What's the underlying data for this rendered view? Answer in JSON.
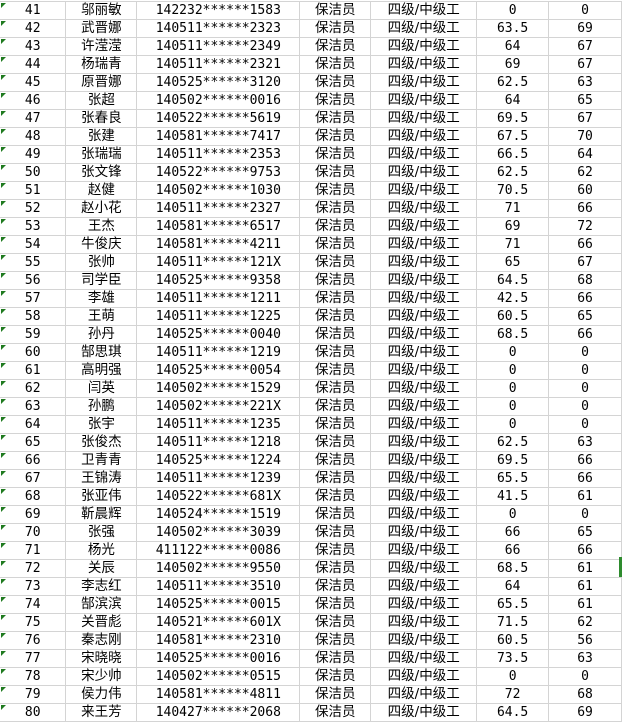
{
  "colors": {
    "grid_line": "#d4d4d4",
    "indicator_green": "#1f7a1f"
  },
  "rows": [
    [
      "41",
      "邬丽敏",
      "142232******1583",
      "保洁员",
      "四级/中级工",
      "0",
      "0"
    ],
    [
      "42",
      "武晋娜",
      "140511******2323",
      "保洁员",
      "四级/中级工",
      "63.5",
      "69"
    ],
    [
      "43",
      "许滢滢",
      "140511******2349",
      "保洁员",
      "四级/中级工",
      "64",
      "67"
    ],
    [
      "44",
      "杨瑞青",
      "140511******2321",
      "保洁员",
      "四级/中级工",
      "69",
      "67"
    ],
    [
      "45",
      "原晋娜",
      "140525******3120",
      "保洁员",
      "四级/中级工",
      "62.5",
      "63"
    ],
    [
      "46",
      "张超",
      "140502******0016",
      "保洁员",
      "四级/中级工",
      "64",
      "65"
    ],
    [
      "47",
      "张春良",
      "140522******5619",
      "保洁员",
      "四级/中级工",
      "69.5",
      "67"
    ],
    [
      "48",
      "张建",
      "140581******7417",
      "保洁员",
      "四级/中级工",
      "67.5",
      "70"
    ],
    [
      "49",
      "张瑞瑞",
      "140511******2353",
      "保洁员",
      "四级/中级工",
      "66.5",
      "64"
    ],
    [
      "50",
      "张文锋",
      "140522******9753",
      "保洁员",
      "四级/中级工",
      "62.5",
      "62"
    ],
    [
      "51",
      "赵健",
      "140502******1030",
      "保洁员",
      "四级/中级工",
      "70.5",
      "60"
    ],
    [
      "52",
      "赵小花",
      "140511******2327",
      "保洁员",
      "四级/中级工",
      "71",
      "66"
    ],
    [
      "53",
      "王杰",
      "140581******6517",
      "保洁员",
      "四级/中级工",
      "69",
      "72"
    ],
    [
      "54",
      "牛俊庆",
      "140581******4211",
      "保洁员",
      "四级/中级工",
      "71",
      "66"
    ],
    [
      "55",
      "张帅",
      "140511******121X",
      "保洁员",
      "四级/中级工",
      "65",
      "67"
    ],
    [
      "56",
      "司学臣",
      "140525******9358",
      "保洁员",
      "四级/中级工",
      "64.5",
      "68"
    ],
    [
      "57",
      "李雄",
      "140511******1211",
      "保洁员",
      "四级/中级工",
      "42.5",
      "66"
    ],
    [
      "58",
      "王萌",
      "140511******1225",
      "保洁员",
      "四级/中级工",
      "60.5",
      "65"
    ],
    [
      "59",
      "孙丹",
      "140525******0040",
      "保洁员",
      "四级/中级工",
      "68.5",
      "66"
    ],
    [
      "60",
      "郜思琪",
      "140511******1219",
      "保洁员",
      "四级/中级工",
      "0",
      "0"
    ],
    [
      "61",
      "高明强",
      "140525******0054",
      "保洁员",
      "四级/中级工",
      "0",
      "0"
    ],
    [
      "62",
      "闫英",
      "140502******1529",
      "保洁员",
      "四级/中级工",
      "0",
      "0"
    ],
    [
      "63",
      "孙鹏",
      "140502******221X",
      "保洁员",
      "四级/中级工",
      "0",
      "0"
    ],
    [
      "64",
      "张宇",
      "140511******1235",
      "保洁员",
      "四级/中级工",
      "0",
      "0"
    ],
    [
      "65",
      "张俊杰",
      "140511******1218",
      "保洁员",
      "四级/中级工",
      "62.5",
      "63"
    ],
    [
      "66",
      "卫青青",
      "140525******1224",
      "保洁员",
      "四级/中级工",
      "69.5",
      "66"
    ],
    [
      "67",
      "王锦涛",
      "140511******1239",
      "保洁员",
      "四级/中级工",
      "65.5",
      "66"
    ],
    [
      "68",
      "张亚伟",
      "140522******681X",
      "保洁员",
      "四级/中级工",
      "41.5",
      "61"
    ],
    [
      "69",
      "靳晨辉",
      "140524******1519",
      "保洁员",
      "四级/中级工",
      "0",
      "0"
    ],
    [
      "70",
      "张强",
      "140502******3039",
      "保洁员",
      "四级/中级工",
      "66",
      "65"
    ],
    [
      "71",
      "杨光",
      "411122******0086",
      "保洁员",
      "四级/中级工",
      "66",
      "66"
    ],
    [
      "72",
      "关辰",
      "140502******9550",
      "保洁员",
      "四级/中级工",
      "68.5",
      "61"
    ],
    [
      "73",
      "李志红",
      "140511******3510",
      "保洁员",
      "四级/中级工",
      "64",
      "61"
    ],
    [
      "74",
      "郜滨滨",
      "140525******0015",
      "保洁员",
      "四级/中级工",
      "65.5",
      "61"
    ],
    [
      "75",
      "关晋彪",
      "140521******601X",
      "保洁员",
      "四级/中级工",
      "71.5",
      "62"
    ],
    [
      "76",
      "秦志刚",
      "140581******2310",
      "保洁员",
      "四级/中级工",
      "60.5",
      "56"
    ],
    [
      "77",
      "宋晓晓",
      "140525******0016",
      "保洁员",
      "四级/中级工",
      "73.5",
      "63"
    ],
    [
      "78",
      "宋少帅",
      "140502******0515",
      "保洁员",
      "四级/中级工",
      "0",
      "0"
    ],
    [
      "79",
      "侯力伟",
      "140581******4811",
      "保洁员",
      "四级/中级工",
      "72",
      "68"
    ],
    [
      "80",
      "来王芳",
      "140427******2068",
      "保洁员",
      "四级/中级工",
      "64.5",
      "69"
    ]
  ]
}
